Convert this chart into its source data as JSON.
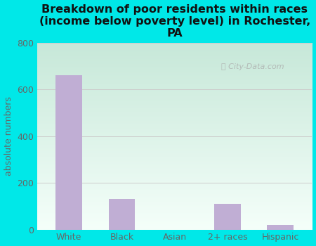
{
  "categories": [
    "White",
    "Black",
    "Asian",
    "2+ races",
    "Hispanic"
  ],
  "values": [
    660,
    130,
    0,
    110,
    20
  ],
  "bar_color": "#c0aed4",
  "title": "Breakdown of poor residents within races\n(income below poverty level) in Rochester,\nPA",
  "ylabel": "absolute numbers",
  "ylim": [
    0,
    800
  ],
  "yticks": [
    0,
    200,
    400,
    600,
    800
  ],
  "background_outer": "#00e8e8",
  "bg_top_left": "#c8e8d8",
  "bg_bottom_right": "#f0faf5",
  "watermark": "City-Data.com",
  "title_fontsize": 11.5,
  "ylabel_fontsize": 9,
  "tick_fontsize": 9,
  "tick_color": "#666666",
  "grid_color": "#cccccc"
}
